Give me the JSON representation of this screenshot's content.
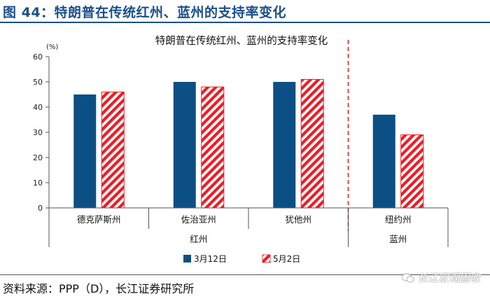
{
  "figure": {
    "title": "图 44：特朗普在传统红州、蓝州的支持率变化",
    "source": "资料来源：PPP（D），长江证券研究所",
    "watermark": "长江宏观固收"
  },
  "colors": {
    "brand": "#1b4f8c",
    "series_solid": "#0b4f84",
    "series_hatched": "#ee1c25",
    "divider": "#ee1c25"
  },
  "chart_data": {
    "type": "bar",
    "title": "特朗普在传统红州、蓝州的支持率变化",
    "unit_label": "(%)",
    "xlabel": "",
    "ylabel": "(%)",
    "ylim": [
      0,
      60
    ],
    "yticks": [
      0,
      10,
      20,
      30,
      40,
      50,
      60
    ],
    "grid": false,
    "categories": [
      "德克萨斯州",
      "佐治亚州",
      "犹他州",
      "纽约州"
    ],
    "groups": [
      {
        "label": "红州",
        "categories": [
          "德克萨斯州",
          "佐治亚州",
          "犹他州"
        ]
      },
      {
        "label": "蓝州",
        "categories": [
          "纽约州"
        ]
      }
    ],
    "series": [
      {
        "name": "3月12日",
        "style": "solid",
        "values": [
          45,
          50,
          50,
          37
        ]
      },
      {
        "name": "5月2日",
        "style": "hatched",
        "values": [
          46,
          48,
          51,
          29
        ]
      }
    ],
    "divider": {
      "between": [
        "犹他州",
        "纽约州"
      ],
      "style": "dashed"
    },
    "legend_position": "bottom-center"
  }
}
